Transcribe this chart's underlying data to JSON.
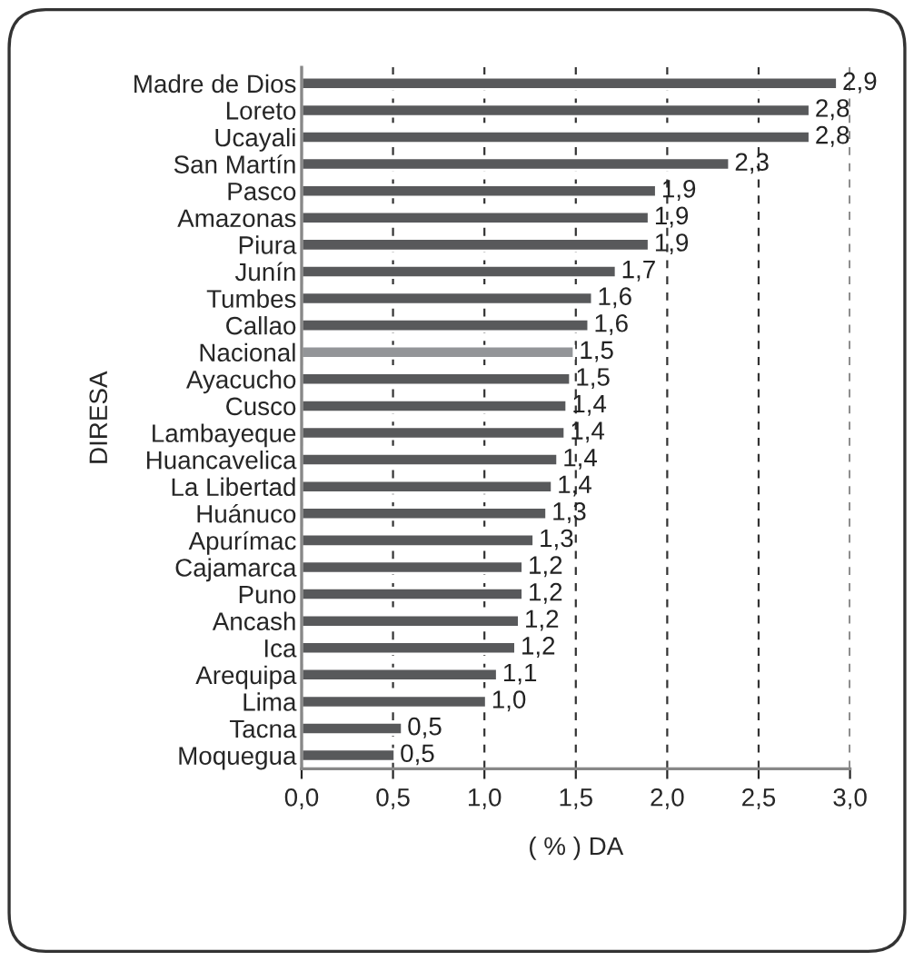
{
  "chart_data": {
    "type": "bar",
    "orientation": "horizontal",
    "categories": [
      "Madre de Dios",
      "Loreto",
      "Ucayali",
      "San Martín",
      "Pasco",
      "Amazonas",
      "Piura",
      "Junín",
      "Tumbes",
      "Callao",
      "Nacional",
      "Ayacucho",
      "Cusco",
      "Lambayeque",
      "Huancavelica",
      "La Libertad",
      "Huánuco",
      "Apurímac",
      "Cajamarca",
      "Puno",
      "Ancash",
      "Ica",
      "Arequipa",
      "Lima",
      "Tacna",
      "Moquegua"
    ],
    "values": [
      2.93,
      2.78,
      2.78,
      2.34,
      1.94,
      1.9,
      1.9,
      1.72,
      1.59,
      1.57,
      1.49,
      1.47,
      1.45,
      1.44,
      1.4,
      1.37,
      1.34,
      1.27,
      1.21,
      1.21,
      1.19,
      1.17,
      1.07,
      1.01,
      0.55,
      0.51
    ],
    "value_labels": [
      "2,9",
      "2,8",
      "2,8",
      "2,3",
      "1,9",
      "1,9",
      "1,9",
      "1,7",
      "1,6",
      "1,6",
      "1,5",
      "1,5",
      "1,4",
      "1,4",
      "1,4",
      "1,4",
      "1,3",
      "1,3",
      "1,2",
      "1,2",
      "1,2",
      "1,2",
      "1,1",
      "1,0",
      "0,5",
      "0,5"
    ],
    "colors": [
      "#58595b",
      "#58595b",
      "#58595b",
      "#58595b",
      "#58595b",
      "#58595b",
      "#58595b",
      "#58595b",
      "#58595b",
      "#58595b",
      "#939598",
      "#58595b",
      "#58595b",
      "#58595b",
      "#58595b",
      "#58595b",
      "#58595b",
      "#58595b",
      "#58595b",
      "#58595b",
      "#58595b",
      "#58595b",
      "#58595b",
      "#58595b",
      "#58595b",
      "#58595b"
    ],
    "xlabel": "( % ) DA",
    "ylabel": "DIRESA",
    "xlim": [
      0,
      3.0
    ],
    "xticks": [
      {
        "value": 0,
        "label": "0,0"
      },
      {
        "value": 0.5,
        "label": "0,5"
      },
      {
        "value": 1.0,
        "label": "1,0"
      },
      {
        "value": 1.5,
        "label": "1,5"
      },
      {
        "value": 2.0,
        "label": "2,0"
      },
      {
        "value": 2.5,
        "label": "2,5"
      },
      {
        "value": 3.0,
        "label": "3,0"
      }
    ],
    "grid": "x",
    "legend": false
  }
}
